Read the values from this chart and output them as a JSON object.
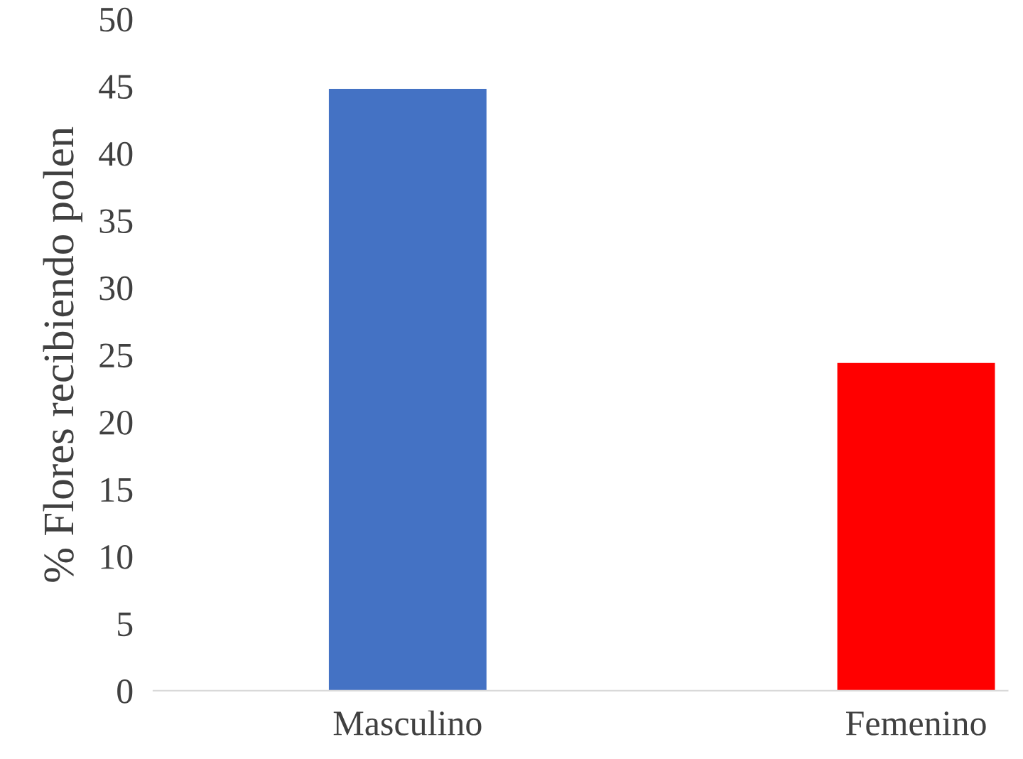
{
  "chart_data": {
    "type": "bar",
    "ylabel": "% Flores recibiendo polen",
    "categories": [
      "Masculino",
      "Femenino"
    ],
    "values": [
      44.8,
      24.4
    ],
    "colors": [
      "#4472c4",
      "#ff0000"
    ],
    "ylim": [
      0,
      50
    ],
    "yticks": [
      0,
      5,
      10,
      15,
      20,
      25,
      30,
      35,
      40,
      45,
      50
    ],
    "grid": false
  }
}
